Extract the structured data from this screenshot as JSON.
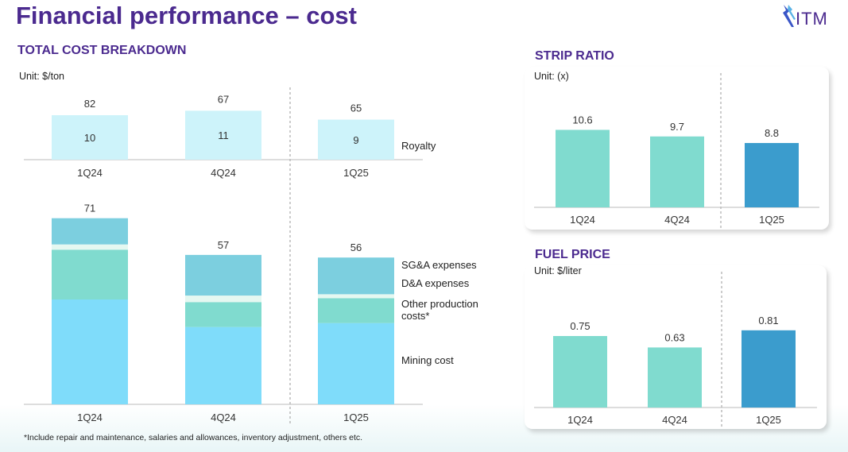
{
  "page": {
    "title": "Financial performance – cost",
    "logo_text": "ITM"
  },
  "colors": {
    "royalty": "#cdf3fa",
    "mining": "#7fdcfa",
    "other_production": "#80dbcf",
    "da": "#e5f8f1",
    "sga": "#7ccfdf",
    "teal": "#80dbcf",
    "blue_highlight": "#3b9ccd",
    "title_purple": "#4b2a8f"
  },
  "chart_data": [
    {
      "id": "total-cost-breakdown",
      "type": "bar",
      "stacked": true,
      "title": "TOTAL COST BREAKDOWN",
      "unit": "Unit: $/ton",
      "categories": [
        "1Q24",
        "4Q24",
        "1Q25"
      ],
      "totals_top": [
        82,
        67,
        65
      ],
      "royalty": {
        "name": "Royalty",
        "values": [
          10,
          11,
          9
        ]
      },
      "totals_bottom": [
        71,
        57,
        56
      ],
      "series": [
        {
          "name": "Mining cost",
          "values": [
            40,
            29.5,
            31
          ]
        },
        {
          "name": "Other production costs*",
          "values": [
            19,
            9.5,
            9.5
          ]
        },
        {
          "name": "D&A expenses",
          "values": [
            2,
            2.5,
            1.5
          ]
        },
        {
          "name": "SG&A expenses",
          "values": [
            10,
            15.5,
            14
          ]
        }
      ]
    },
    {
      "id": "strip-ratio",
      "type": "bar",
      "title": "STRIP RATIO",
      "unit": "Unit: (x)",
      "categories": [
        "1Q24",
        "4Q24",
        "1Q25"
      ],
      "values": [
        10.6,
        9.7,
        8.8
      ],
      "labels": [
        "10.6",
        "9.7",
        "8.8"
      ],
      "highlight_index": 2
    },
    {
      "id": "fuel-price",
      "type": "bar",
      "title": "FUEL PRICE",
      "unit": "Unit: $/liter",
      "categories": [
        "1Q24",
        "4Q24",
        "1Q25"
      ],
      "values": [
        0.75,
        0.63,
        0.81
      ],
      "labels": [
        "0.75",
        "0.63",
        "0.81"
      ],
      "highlight_index": 2
    }
  ],
  "footnote": "*Include repair and maintenance, salaries and allowances, inventory adjustment, others etc."
}
